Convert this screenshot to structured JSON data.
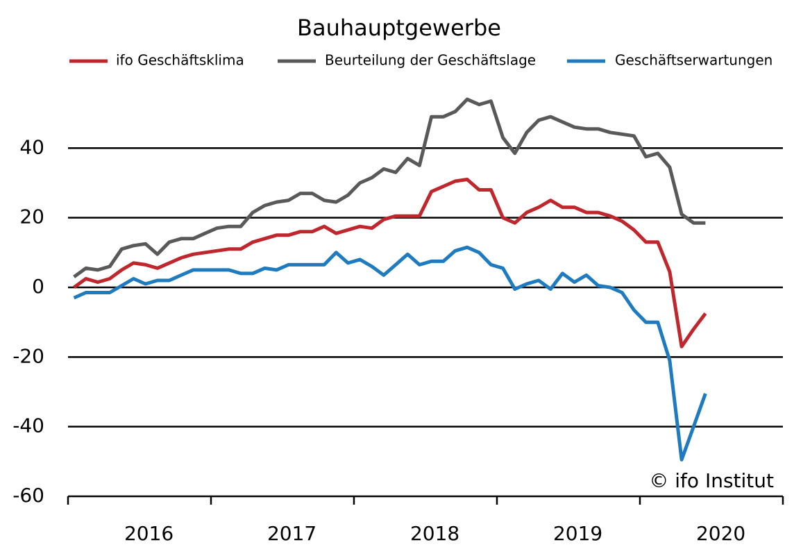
{
  "chart_data": {
    "type": "line",
    "title": "Bauhauptgewerbe",
    "categories": [
      null,
      null,
      null,
      null,
      null,
      null,
      "2016",
      null,
      null,
      null,
      null,
      null,
      null,
      null,
      null,
      null,
      null,
      null,
      "2017",
      null,
      null,
      null,
      null,
      null,
      null,
      null,
      null,
      null,
      null,
      null,
      "2018",
      null,
      null,
      null,
      null,
      null,
      null,
      null,
      null,
      null,
      null,
      null,
      "2019",
      null,
      null,
      null,
      null,
      null,
      null,
      null,
      null,
      null,
      null,
      null,
      "2020",
      null,
      null,
      null,
      null,
      null
    ],
    "series": [
      {
        "name": "ifo Geschäftsklima",
        "color": "#c0272d",
        "values": [
          0,
          2.5,
          1.5,
          2.5,
          5,
          7,
          6.5,
          5.5,
          7,
          8.5,
          9.5,
          10,
          10.5,
          11,
          11,
          13,
          14,
          15,
          15,
          16,
          16,
          17.5,
          15.5,
          16.5,
          17.5,
          17,
          19.5,
          20.5,
          20.5,
          20.5,
          27.5,
          29,
          30.5,
          31,
          28,
          28,
          20,
          18.5,
          21.5,
          23,
          25,
          23,
          23,
          21.5,
          21.5,
          20.5,
          19,
          16.5,
          13,
          13,
          4.5,
          -17,
          -12,
          -7.5,
          null,
          null,
          null,
          null,
          null,
          null
        ]
      },
      {
        "name": "Beurteilung der Geschäftslage",
        "color": "#595959",
        "values": [
          3,
          5.5,
          5,
          6,
          11,
          12,
          12.5,
          9.5,
          13,
          14,
          14,
          15.5,
          17,
          17.5,
          17.5,
          21.5,
          23.5,
          24.5,
          25,
          27,
          27,
          25,
          24.5,
          26.5,
          30,
          31.5,
          34,
          33,
          37,
          35,
          49,
          49,
          50.5,
          54,
          52.5,
          53.5,
          43,
          38.5,
          44.5,
          48,
          49,
          47.5,
          46,
          45.5,
          45.5,
          44.5,
          44,
          43.5,
          37.5,
          38.5,
          34.5,
          21,
          18.5,
          18.5,
          null,
          null,
          null,
          null,
          null,
          null
        ]
      },
      {
        "name": "Geschäftserwartungen",
        "color": "#1f7bbf",
        "values": [
          -3,
          -1.5,
          -1.5,
          -1.5,
          0.5,
          2.5,
          1,
          2,
          2,
          3.5,
          5,
          5,
          5,
          5,
          4,
          4,
          5.5,
          5,
          6.5,
          6.5,
          6.5,
          6.5,
          10,
          7,
          8,
          6,
          3.5,
          6.5,
          9.5,
          6.5,
          7.5,
          7.5,
          10.5,
          11.5,
          10,
          6.5,
          5.5,
          -0.5,
          1,
          2,
          -0.5,
          4,
          1.5,
          3.5,
          0.5,
          0,
          -1.5,
          -6.5,
          -10,
          -10,
          -21,
          -49.5,
          -40,
          -30.5,
          null,
          null,
          null,
          null,
          null,
          null
        ]
      }
    ],
    "ylim": [
      -60,
      60
    ],
    "yticks": [
      -60,
      -40,
      -20,
      0,
      20,
      40
    ],
    "grid": true,
    "annotation": "© ifo Institut"
  }
}
